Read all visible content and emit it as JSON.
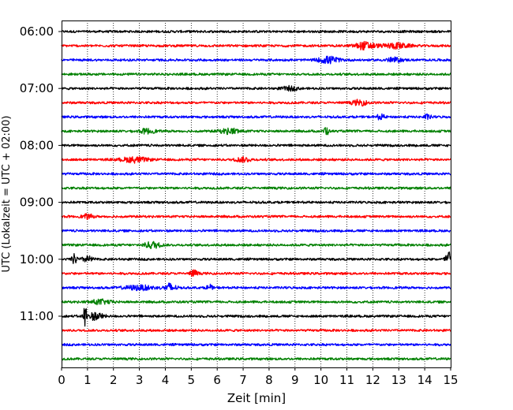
{
  "chart_data": {
    "type": "line",
    "title": "",
    "xlabel": "Zeit  [min]",
    "ylabel": "UTC (Lokalzeit = UTC + 02:00)",
    "xlim": [
      0,
      15
    ],
    "xticks": [
      "0",
      "1",
      "2",
      "3",
      "4",
      "5",
      "6",
      "7",
      "8",
      "9",
      "10",
      "11",
      "12",
      "13",
      "14",
      "15"
    ],
    "yticks": [
      "06:00",
      "07:00",
      "08:00",
      "09:00",
      "10:00",
      "11:00"
    ],
    "grid": "vertical dotted",
    "traces_per_hour": 4,
    "trace_minutes": 15,
    "color_cycle": [
      "#000000",
      "#ff0000",
      "#0000ff",
      "#008000"
    ],
    "traces": [
      {
        "start": "06:00",
        "color": "#000000"
      },
      {
        "start": "06:15",
        "color": "#ff0000",
        "events": [
          {
            "t": 11.7,
            "amp": 0.5,
            "width": 0.4
          },
          {
            "t": 12.9,
            "amp": 0.35,
            "width": 0.5
          }
        ]
      },
      {
        "start": "06:30",
        "color": "#0000ff",
        "events": [
          {
            "t": 10.3,
            "amp": 0.45,
            "width": 0.4
          },
          {
            "t": 12.8,
            "amp": 0.3,
            "width": 0.3
          }
        ]
      },
      {
        "start": "06:45",
        "color": "#008000"
      },
      {
        "start": "07:00",
        "color": "#000000",
        "events": [
          {
            "t": 8.8,
            "amp": 0.25,
            "width": 0.3
          }
        ]
      },
      {
        "start": "07:15",
        "color": "#ff0000",
        "events": [
          {
            "t": 11.5,
            "amp": 0.35,
            "width": 0.3
          }
        ]
      },
      {
        "start": "07:30",
        "color": "#0000ff",
        "events": [
          {
            "t": 12.3,
            "amp": 0.35,
            "width": 0.15
          },
          {
            "t": 14.1,
            "amp": 0.3,
            "width": 0.15
          }
        ]
      },
      {
        "start": "07:45",
        "color": "#008000",
        "events": [
          {
            "t": 3.3,
            "amp": 0.3,
            "width": 0.3
          },
          {
            "t": 6.5,
            "amp": 0.35,
            "width": 0.4
          },
          {
            "t": 10.2,
            "amp": 0.75,
            "width": 0.08
          }
        ]
      },
      {
        "start": "08:00",
        "color": "#000000"
      },
      {
        "start": "08:15",
        "color": "#ff0000",
        "events": [
          {
            "t": 2.8,
            "amp": 0.35,
            "width": 0.5
          },
          {
            "t": 7.0,
            "amp": 0.3,
            "width": 0.3
          }
        ]
      },
      {
        "start": "08:30",
        "color": "#0000ff"
      },
      {
        "start": "08:45",
        "color": "#008000"
      },
      {
        "start": "09:00",
        "color": "#000000"
      },
      {
        "start": "09:15",
        "color": "#ff0000",
        "events": [
          {
            "t": 1.0,
            "amp": 0.3,
            "width": 0.2
          }
        ]
      },
      {
        "start": "09:30",
        "color": "#0000ff"
      },
      {
        "start": "09:45",
        "color": "#008000",
        "events": [
          {
            "t": 3.5,
            "amp": 0.45,
            "width": 0.3
          }
        ]
      },
      {
        "start": "10:00",
        "color": "#000000",
        "events": [
          {
            "t": 0.5,
            "amp": 0.7,
            "width": 0.1
          },
          {
            "t": 1.0,
            "amp": 0.4,
            "width": 0.2
          },
          {
            "t": 14.9,
            "amp": 1.3,
            "width": 0.1
          }
        ]
      },
      {
        "start": "10:15",
        "color": "#ff0000",
        "events": [
          {
            "t": 5.1,
            "amp": 0.45,
            "width": 0.15
          }
        ]
      },
      {
        "start": "10:30",
        "color": "#0000ff",
        "events": [
          {
            "t": 3.0,
            "amp": 0.3,
            "width": 0.6
          },
          {
            "t": 4.2,
            "amp": 0.6,
            "width": 0.2
          },
          {
            "t": 5.7,
            "amp": 0.45,
            "width": 0.1
          }
        ]
      },
      {
        "start": "10:45",
        "color": "#008000",
        "events": [
          {
            "t": 1.5,
            "amp": 0.3,
            "width": 0.4
          }
        ]
      },
      {
        "start": "11:00",
        "color": "#000000",
        "events": [
          {
            "t": 0.9,
            "amp": 2.1,
            "width": 0.06
          },
          {
            "t": 1.3,
            "amp": 0.5,
            "width": 0.3
          }
        ]
      },
      {
        "start": "11:15",
        "color": "#ff0000"
      },
      {
        "start": "11:30",
        "color": "#0000ff"
      },
      {
        "start": "11:45",
        "color": "#008000"
      }
    ]
  }
}
